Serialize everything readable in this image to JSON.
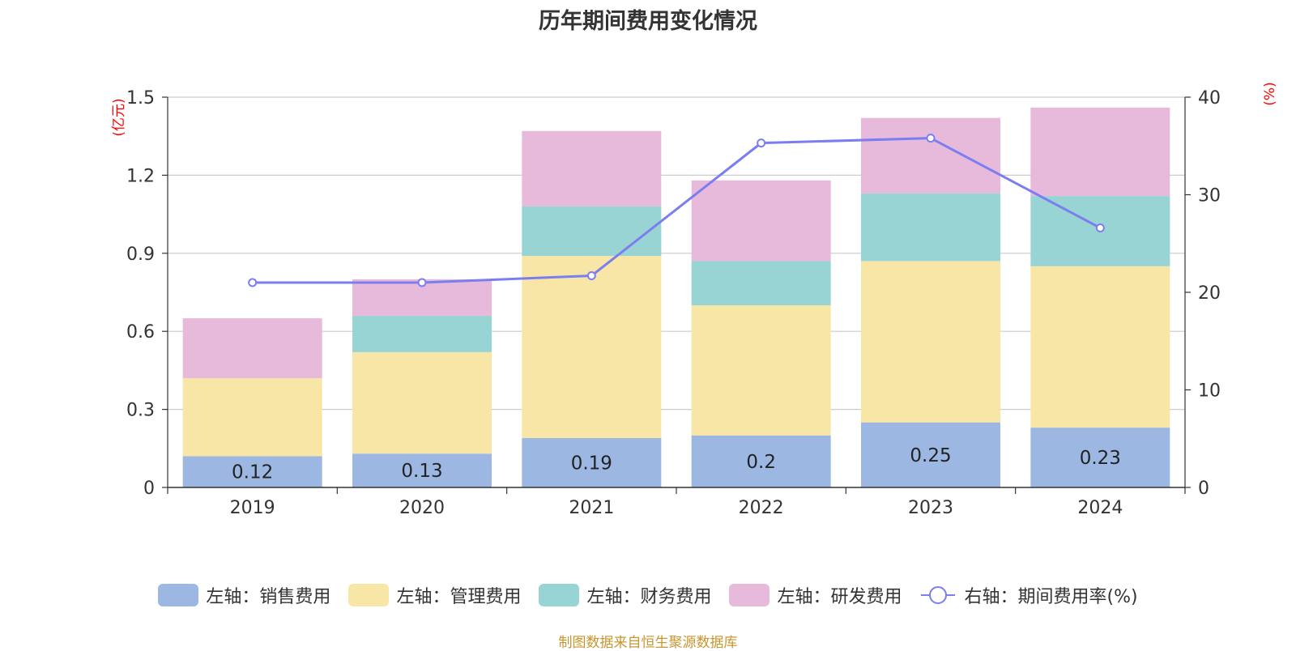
{
  "title": "历年期间费用变化情况",
  "left_axis_label": "(亿元)",
  "right_axis_label": "(%)",
  "source_note": "制图数据来自恒生聚源数据库",
  "legend": [
    {
      "label": "左轴：销售费用",
      "color": "#9cb8e2",
      "marker": "swatch"
    },
    {
      "label": "左轴：管理费用",
      "color": "#f8e6a6",
      "marker": "swatch"
    },
    {
      "label": "左轴：财务费用",
      "color": "#98d4d4",
      "marker": "swatch"
    },
    {
      "label": "左轴：研发费用",
      "color": "#e7b9da",
      "marker": "swatch"
    },
    {
      "label": "右轴：期间费用率(%)",
      "color": "#7b7ef0",
      "marker": "line"
    }
  ],
  "chart_data": {
    "type": "bar",
    "stacked": true,
    "title": "历年期间费用变化情况",
    "categories": [
      "2019",
      "2020",
      "2021",
      "2022",
      "2023",
      "2024"
    ],
    "y_left": {
      "label": "(亿元)",
      "range": [
        0,
        1.5
      ],
      "ticks": [
        "0",
        "0.3",
        "0.6",
        "0.9",
        "1.2",
        "1.5"
      ]
    },
    "y_right": {
      "label": "(%)",
      "range": [
        0,
        40
      ],
      "ticks": [
        "0",
        "10",
        "20",
        "30",
        "40"
      ]
    },
    "grid": true,
    "legend_position": "bottom",
    "series": [
      {
        "name": "左轴：销售费用",
        "axis": "left",
        "color": "#9cb8e2",
        "values": [
          0.12,
          0.13,
          0.19,
          0.2,
          0.25,
          0.23
        ],
        "labels": [
          "0.12",
          "0.13",
          "0.19",
          "0.2",
          "0.25",
          "0.23"
        ]
      },
      {
        "name": "左轴：管理费用",
        "axis": "left",
        "color": "#f8e6a6",
        "values": [
          0.3,
          0.39,
          0.7,
          0.5,
          0.62,
          0.62
        ]
      },
      {
        "name": "左轴：财务费用",
        "axis": "left",
        "color": "#98d4d4",
        "values": [
          0.0,
          0.14,
          0.19,
          0.17,
          0.26,
          0.27
        ]
      },
      {
        "name": "左轴：研发费用",
        "axis": "left",
        "color": "#e7b9da",
        "values": [
          0.23,
          0.14,
          0.29,
          0.31,
          0.29,
          0.34
        ]
      },
      {
        "name": "右轴：期间费用率(%)",
        "axis": "right",
        "type": "line",
        "color": "#7b7ef0",
        "values": [
          21.0,
          21.0,
          21.7,
          35.3,
          35.8,
          26.6
        ]
      }
    ]
  }
}
